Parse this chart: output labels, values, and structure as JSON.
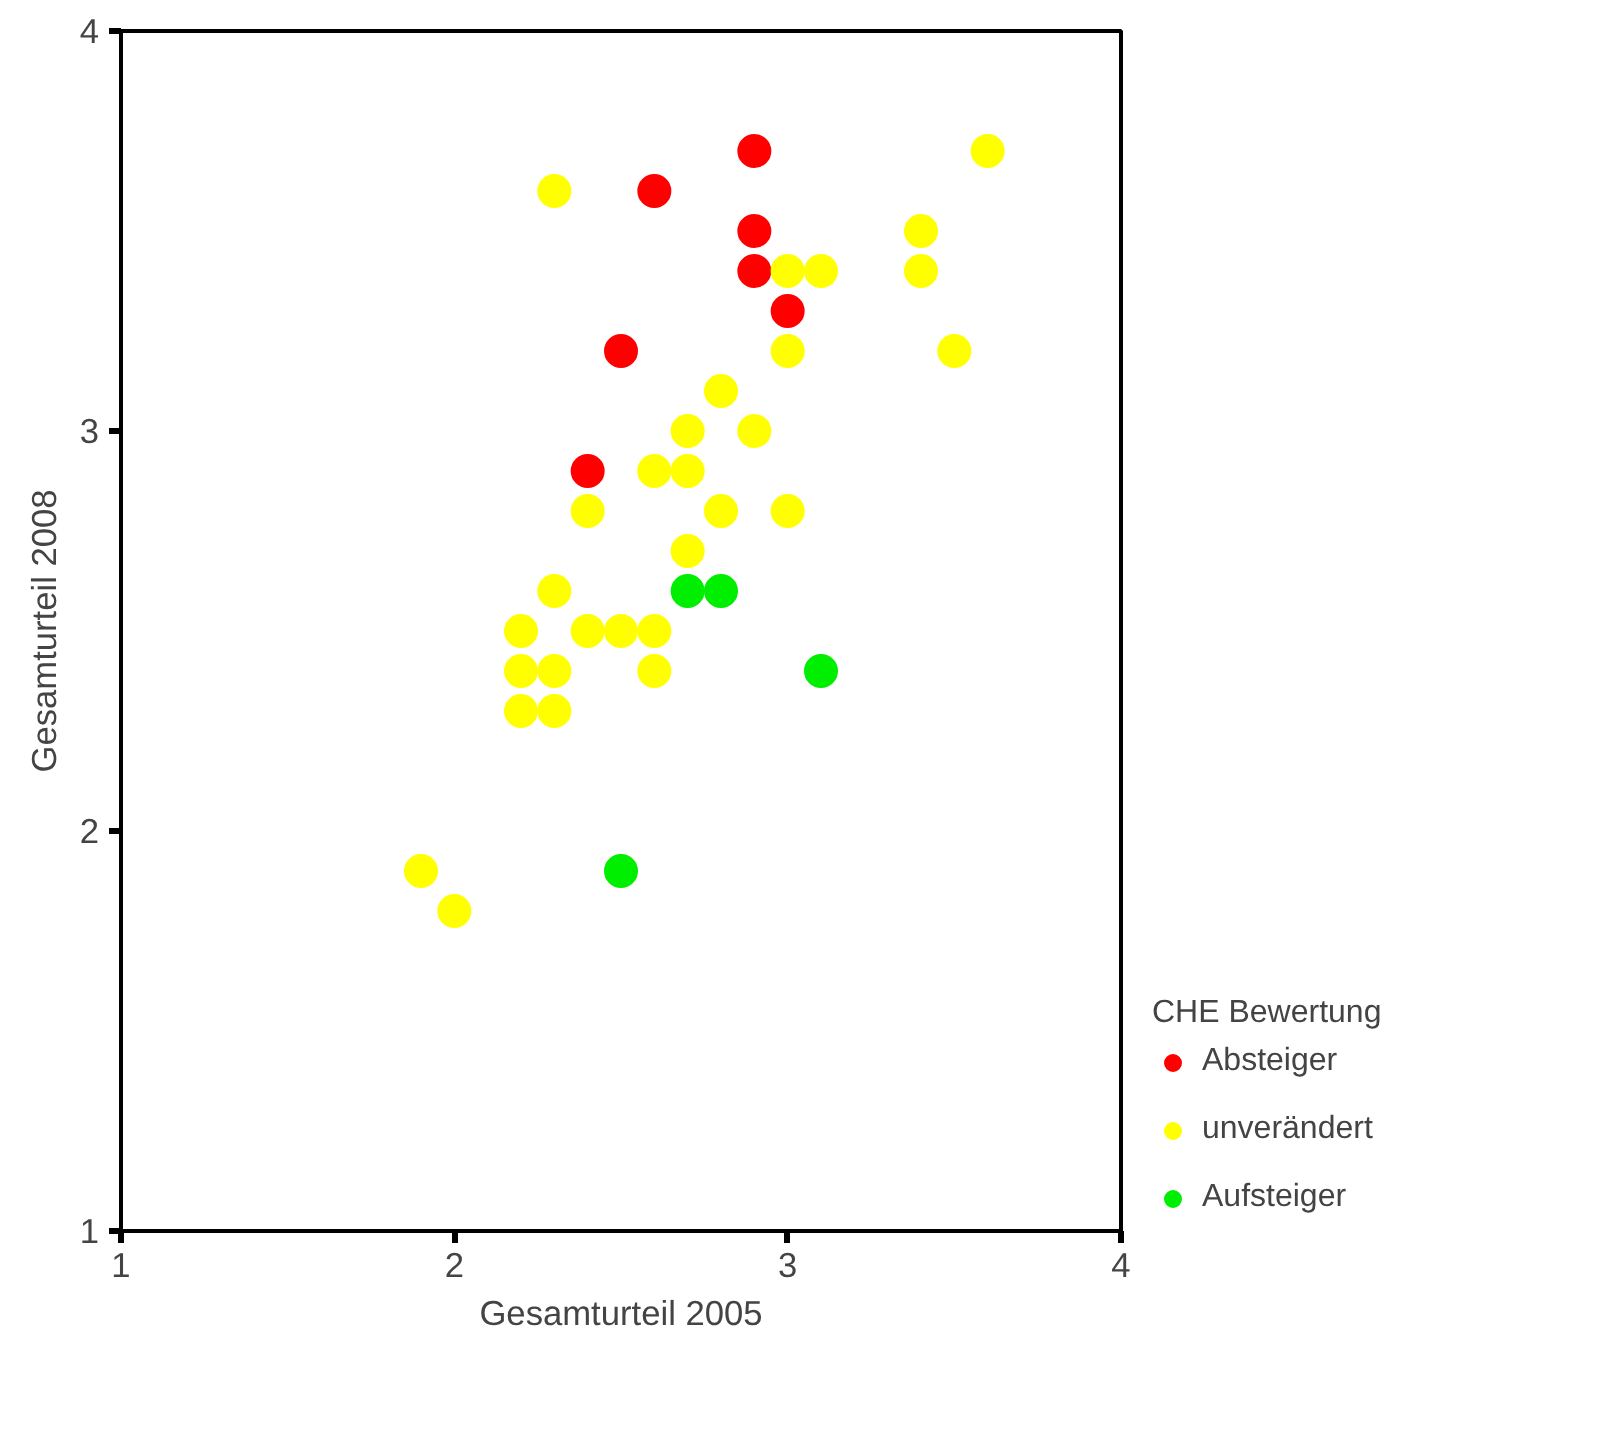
{
  "chart_data": {
    "type": "scatter",
    "xlabel": "Gesamturteil 2005",
    "ylabel": "Gesamturteil 2008",
    "legend_title": "CHE Bewertung",
    "legend": "right",
    "grid": false,
    "marker": "circle",
    "xlim": [
      1,
      4
    ],
    "ylim": [
      1,
      4
    ],
    "xticks": [
      1,
      2,
      3,
      4
    ],
    "yticks": [
      1,
      2,
      3,
      4
    ],
    "series": [
      {
        "name": "Absteiger",
        "color": "#ff0000",
        "x": [
          2.9,
          2.6,
          2.9,
          2.9,
          3.0,
          2.5,
          2.4
        ],
        "values": [
          3.7,
          3.6,
          3.5,
          3.4,
          3.3,
          3.2,
          2.9
        ]
      },
      {
        "name": "unverändert",
        "color": "#ffff00",
        "x": [
          2.3,
          3.6,
          3.4,
          3.4,
          3.0,
          3.1,
          3.0,
          3.5,
          2.8,
          2.7,
          2.9,
          2.6,
          2.7,
          2.4,
          2.8,
          3.0,
          2.7,
          2.3,
          2.2,
          2.4,
          2.5,
          2.6,
          2.2,
          2.3,
          2.6,
          2.2,
          2.3,
          1.9,
          2.0
        ],
        "values": [
          3.6,
          3.7,
          3.5,
          3.4,
          3.4,
          3.4,
          3.2,
          3.2,
          3.1,
          3.0,
          3.0,
          2.9,
          2.9,
          2.8,
          2.8,
          2.8,
          2.7,
          2.6,
          2.5,
          2.5,
          2.5,
          2.5,
          2.4,
          2.4,
          2.4,
          2.3,
          2.3,
          1.9,
          1.8
        ]
      },
      {
        "name": "Aufsteiger",
        "color": "#00ee00",
        "x": [
          2.7,
          2.8,
          3.1,
          2.5
        ],
        "values": [
          2.6,
          2.6,
          2.4,
          1.9
        ]
      }
    ]
  }
}
